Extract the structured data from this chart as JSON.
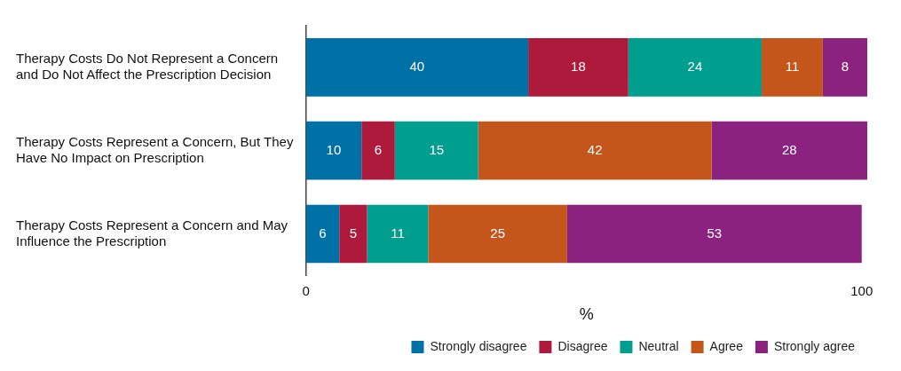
{
  "chart_data": {
    "type": "bar",
    "orientation": "horizontal",
    "stacked": true,
    "categories": [
      "Therapy Costs Do Not Represent a Concern and Do Not Affect the Prescription Decision",
      "Therapy Costs Represent a Concern, But They Have No Impact on Prescription",
      "Therapy Costs Represent a Concern and May Influence the Prescription"
    ],
    "series": [
      {
        "name": "Strongly disagree",
        "color": "#0071a6",
        "values": [
          40,
          10,
          6
        ]
      },
      {
        "name": "Disagree",
        "color": "#ae1a3c",
        "values": [
          18,
          6,
          5
        ]
      },
      {
        "name": "Neutral",
        "color": "#009e8f",
        "values": [
          24,
          15,
          11
        ]
      },
      {
        "name": "Agree",
        "color": "#c4561c",
        "values": [
          11,
          42,
          25
        ]
      },
      {
        "name": "Strongly agree",
        "color": "#8b2280",
        "values": [
          8,
          28,
          53
        ]
      }
    ],
    "xlim": [
      0,
      101
    ],
    "xticks": [
      0,
      100
    ],
    "xlabel": "%",
    "grid": false,
    "legend": "bottom right",
    "data_labels": true
  }
}
